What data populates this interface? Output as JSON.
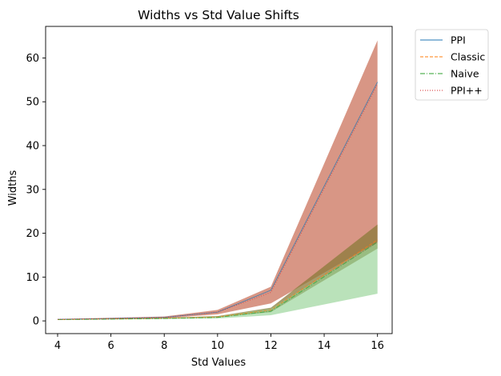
{
  "chart_data": {
    "type": "line",
    "title": "Widths vs Std Value Shifts",
    "xlabel": "Std Values",
    "ylabel": "Widths",
    "x": [
      4,
      6,
      8,
      10,
      12,
      16
    ],
    "xlim": [
      3.55,
      16.55
    ],
    "ylim": [
      -2.9,
      67.2
    ],
    "xticks": [
      4,
      6,
      8,
      10,
      12,
      14,
      16
    ],
    "yticks": [
      0,
      10,
      20,
      30,
      40,
      50,
      60
    ],
    "legend_position": "outside upper right",
    "series": [
      {
        "name": "PPI",
        "color": "#1f77b4",
        "line_style": "solid",
        "values": [
          0.35,
          0.55,
          0.8,
          2.0,
          7.0,
          54.5
        ],
        "band_lower": [
          0.25,
          0.4,
          0.6,
          1.5,
          4.0,
          18.0
        ],
        "band_upper": [
          0.45,
          0.7,
          1.0,
          2.5,
          7.8,
          64.0
        ],
        "band_color": "#c0553a"
      },
      {
        "name": "Classic",
        "color": "#ff7f0e",
        "line_style": "dashed",
        "values": [
          0.3,
          0.45,
          0.6,
          0.9,
          2.5,
          18.5
        ],
        "band_lower": [
          0.28,
          0.4,
          0.55,
          0.8,
          2.0,
          16.5
        ],
        "band_upper": [
          0.35,
          0.5,
          0.7,
          1.1,
          3.0,
          22.0
        ],
        "band_color": "#8b7a3a"
      },
      {
        "name": "Naive",
        "color": "#2ca02c",
        "line_style": "dashdot",
        "values": [
          0.3,
          0.4,
          0.55,
          0.8,
          2.2,
          18.0
        ],
        "band_lower": [
          0.2,
          0.3,
          0.4,
          0.55,
          1.3,
          6.2
        ],
        "band_upper": [
          0.35,
          0.5,
          0.65,
          1.0,
          2.8,
          17.8
        ],
        "band_color": "#8fd08f"
      },
      {
        "name": "PPI++",
        "color": "#d62728",
        "line_style": "dotted",
        "values": [
          0.35,
          0.55,
          0.8,
          2.0,
          6.5,
          54.0
        ]
      }
    ]
  }
}
